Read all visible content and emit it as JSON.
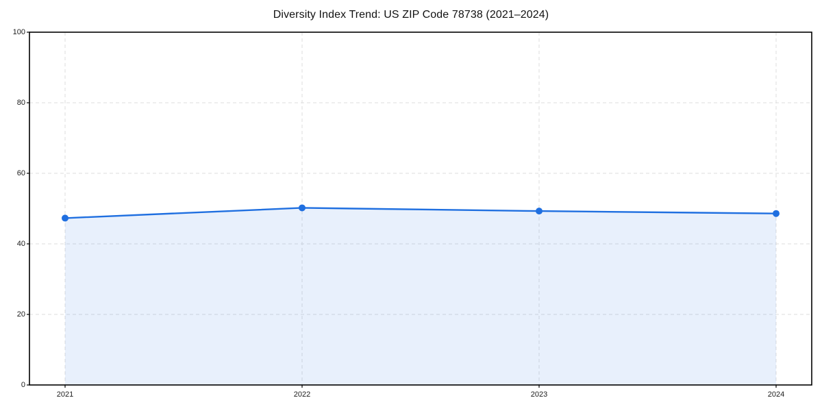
{
  "chart_data": {
    "type": "area",
    "title": "Diversity Index Trend: US ZIP Code 78738 (2021–2024)",
    "categories": [
      "2021",
      "2022",
      "2023",
      "2024"
    ],
    "series": [
      {
        "name": "Diversity Index",
        "values": [
          47.3,
          50.2,
          49.3,
          48.6
        ]
      }
    ],
    "xlabel": "",
    "ylabel": "",
    "ylim": [
      0,
      100
    ],
    "yticks": [
      0,
      20,
      40,
      60,
      80,
      100
    ],
    "grid": true,
    "grid_style": "dashed",
    "legend": "none",
    "marker": "circle",
    "colors": {
      "line": "#1f6fe0",
      "fill": "rgba(31,111,224,0.10)",
      "grid": "#dedede",
      "frame": "#000000",
      "tick_text": "#1a1a1a",
      "title_text": "#111111",
      "background": "#ffffff"
    }
  }
}
